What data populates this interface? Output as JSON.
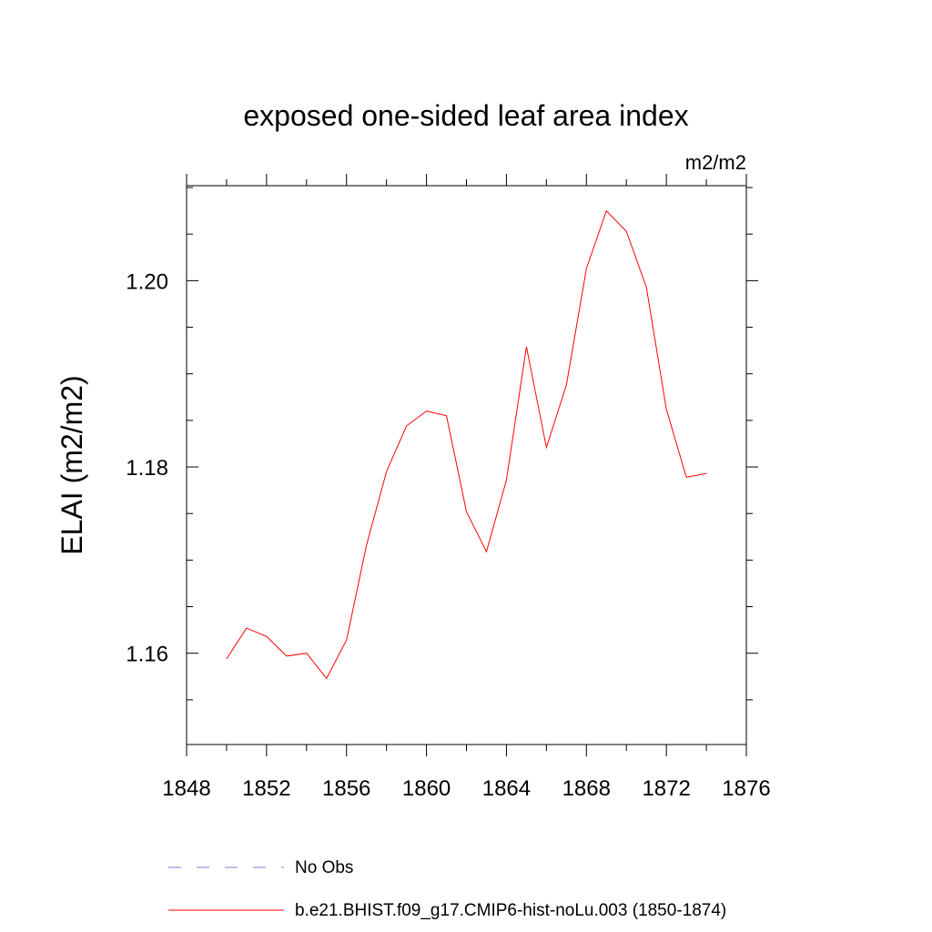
{
  "chart_data": {
    "type": "line",
    "title": "exposed one-sided leaf area index",
    "units_label": "m2/m2",
    "ylabel": "ELAI  (m2/m2)",
    "xlabel": "",
    "xlim": [
      1848,
      1876
    ],
    "ylim": [
      1.1502,
      1.2102
    ],
    "x_ticks": [
      1848,
      1852,
      1856,
      1860,
      1864,
      1868,
      1872,
      1876
    ],
    "x_tick_labels": [
      "1848",
      "1852",
      "1856",
      "1860",
      "1864",
      "1868",
      "1872",
      "1876"
    ],
    "y_ticks": [
      1.16,
      1.18,
      1.2
    ],
    "y_tick_labels": [
      "1.16",
      "1.18",
      "1.20"
    ],
    "y_minor_step": 0.005,
    "grid": false,
    "legend_position": "bottom",
    "series": [
      {
        "name": "No Obs",
        "color": "#7b7bd4",
        "dash": "dashed",
        "x": [],
        "values": []
      },
      {
        "name": "b.e21.BHIST.f09_g17.CMIP6-hist-noLu.003 (1850-1874)",
        "color": "#ff0000",
        "dash": "solid",
        "x": [
          1850,
          1851,
          1852,
          1853,
          1854,
          1855,
          1856,
          1857,
          1858,
          1859,
          1860,
          1861,
          1862,
          1863,
          1864,
          1865,
          1866,
          1867,
          1868,
          1869,
          1870,
          1871,
          1872,
          1873,
          1874
        ],
        "values": [
          1.1594,
          1.1627,
          1.1618,
          1.1597,
          1.16,
          1.1573,
          1.1614,
          1.1716,
          1.1795,
          1.1844,
          1.186,
          1.1855,
          1.1752,
          1.1709,
          1.1786,
          1.1929,
          1.1821,
          1.1888,
          1.2013,
          1.2075,
          1.2053,
          1.1993,
          1.1862,
          1.1789,
          1.1793
        ]
      }
    ]
  }
}
